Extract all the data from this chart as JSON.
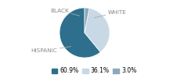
{
  "labels": [
    "HISPANIC",
    "WHITE",
    "BLACK"
  ],
  "values": [
    60.9,
    36.1,
    3.0
  ],
  "colors": [
    "#2d6f8d",
    "#c8d8e4",
    "#8aaabb"
  ],
  "startangle": 90,
  "legend_labels": [
    "60.9%",
    "36.1%",
    "3.0%"
  ],
  "background_color": "#ffffff",
  "label_fontsize": 5.2,
  "legend_fontsize": 5.5,
  "text_color": "#888888"
}
